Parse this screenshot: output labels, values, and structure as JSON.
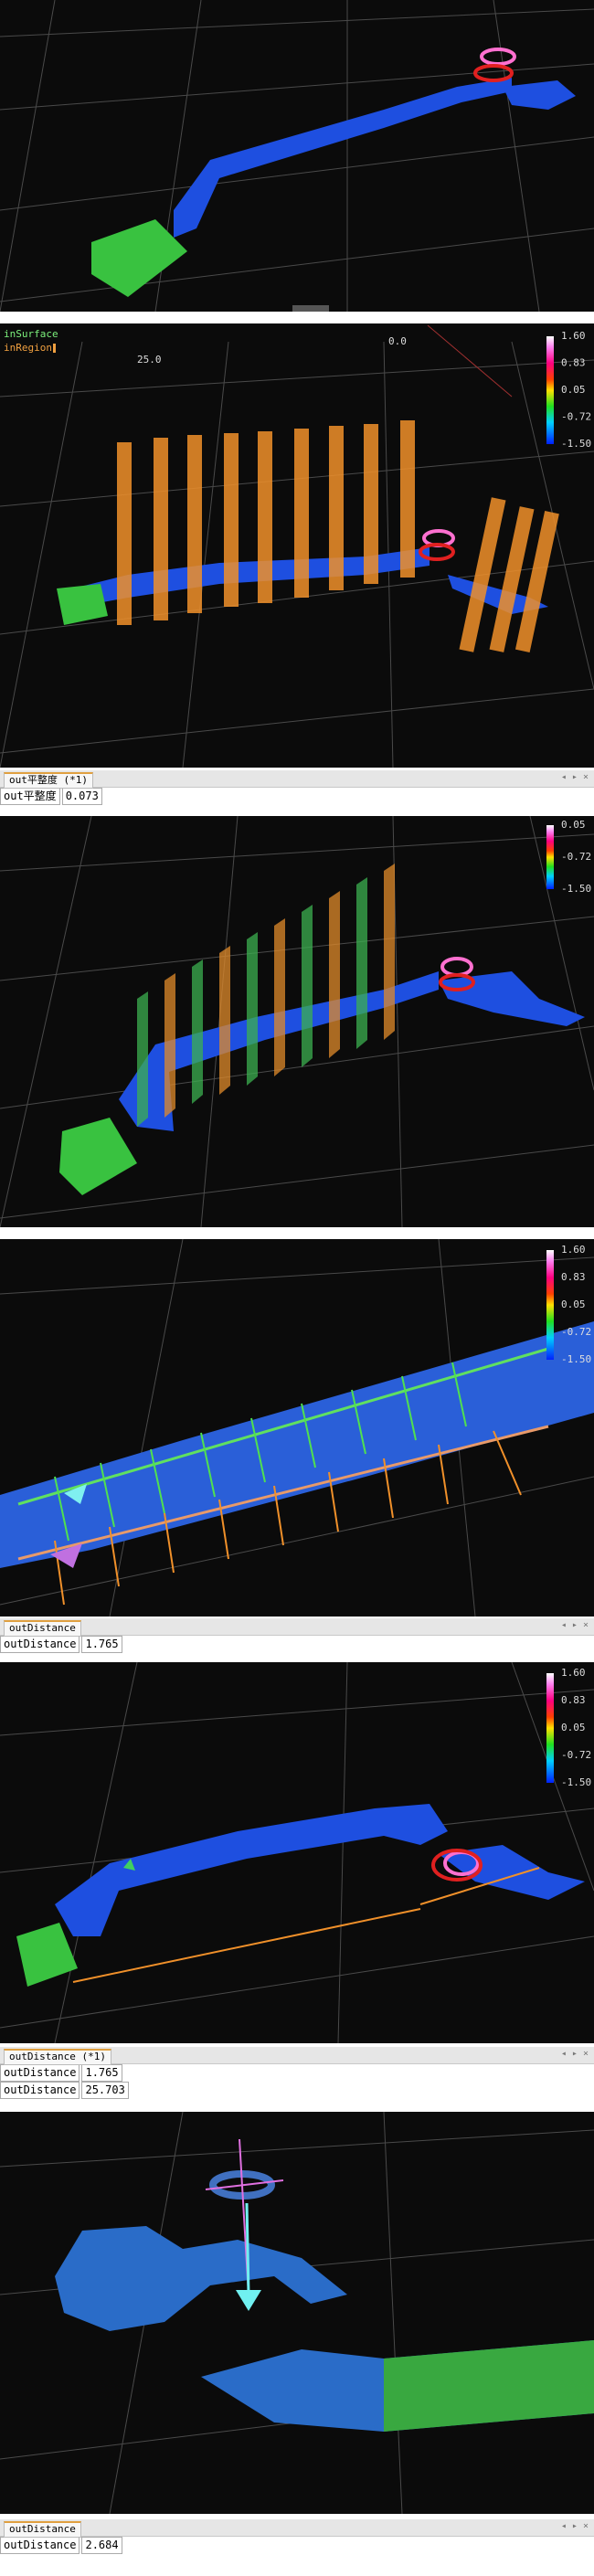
{
  "view2": {
    "legend": [
      "inSurface",
      "inRegion"
    ],
    "axis_labels": [
      "25.0",
      "0.0"
    ],
    "colorbar": [
      "1.60",
      "0.83",
      "0.05",
      "-0.72",
      "-1.50"
    ]
  },
  "results1": {
    "tab": "out平整度 (*1)",
    "rows": [
      [
        "out平整度",
        "0.073"
      ]
    ]
  },
  "view3": {
    "colorbar": [
      "0.05",
      "-0.72",
      "-1.50"
    ]
  },
  "view4": {
    "colorbar": [
      "1.60",
      "0.83",
      "0.05",
      "-0.72",
      "-1.50"
    ]
  },
  "results2": {
    "tab": "outDistance",
    "rows": [
      [
        "outDistance",
        "1.765"
      ]
    ]
  },
  "view5": {
    "colorbar": [
      "1.60",
      "0.83",
      "0.05",
      "-0.72",
      "-1.50"
    ]
  },
  "results3": {
    "tab": "outDistance (*1)",
    "rows": [
      [
        "outDistance",
        "1.765"
      ],
      [
        "outDistance",
        "25.703"
      ]
    ]
  },
  "results4": {
    "tab": "outDistance",
    "rows": [
      [
        "outDistance",
        "2.684"
      ]
    ]
  }
}
